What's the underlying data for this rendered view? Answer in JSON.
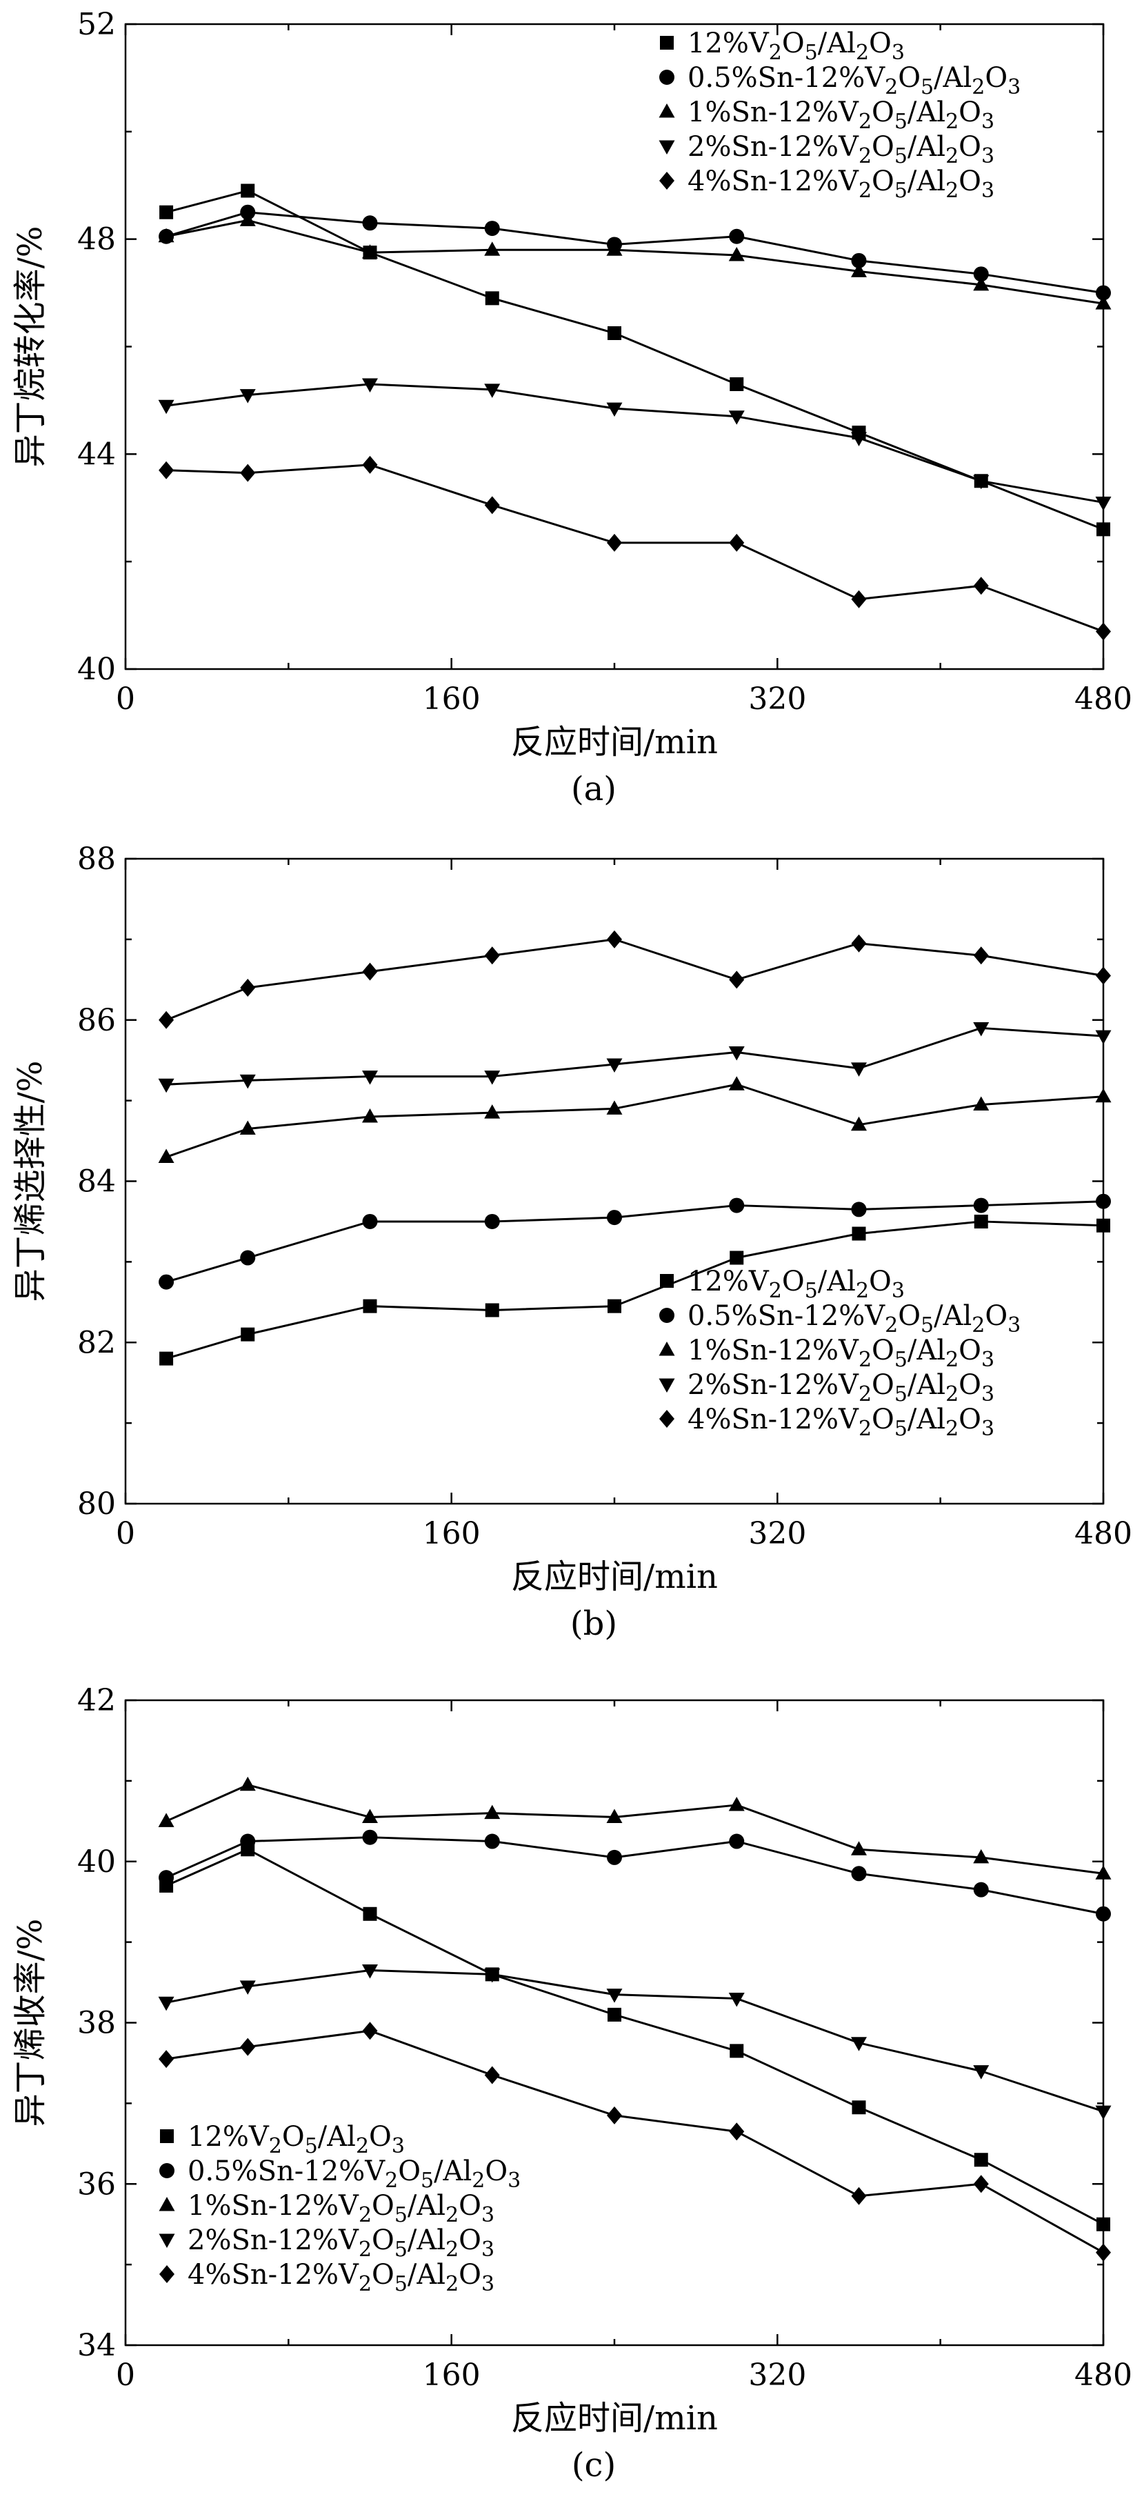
{
  "chart_data": [
    {
      "type": "line",
      "panel_label": "(a)",
      "xlabel": "反应时间/min",
      "ylabel": "异丁烷转化率/%",
      "xlim": [
        0,
        480
      ],
      "ylim": [
        40,
        52
      ],
      "xticks": [
        0,
        160,
        320,
        480
      ],
      "yticks": [
        40,
        44,
        48,
        52
      ],
      "legend_position": "top-right",
      "grid": false,
      "x": [
        20,
        60,
        120,
        180,
        240,
        300,
        360,
        420,
        480
      ],
      "series": [
        {
          "name": "12%V2O5/Al2O3",
          "marker": "square",
          "values": [
            48.5,
            48.9,
            47.75,
            46.9,
            46.25,
            45.3,
            44.4,
            43.5,
            42.6
          ]
        },
        {
          "name": "0.5%Sn-12%V2O5/Al2O3",
          "marker": "circle",
          "values": [
            48.05,
            48.5,
            48.3,
            48.2,
            47.9,
            48.05,
            47.6,
            47.35,
            47.0
          ]
        },
        {
          "name": "1%Sn-12%V2O5/Al2O3",
          "marker": "triangle-up",
          "values": [
            48.05,
            48.35,
            47.75,
            47.8,
            47.8,
            47.7,
            47.4,
            47.15,
            46.8
          ]
        },
        {
          "name": "2%Sn-12%V2O5/Al2O3",
          "marker": "triangle-down",
          "values": [
            44.9,
            45.1,
            45.3,
            45.2,
            44.85,
            44.7,
            44.3,
            43.5,
            43.1
          ]
        },
        {
          "name": "4%Sn-12%V2O5/Al2O3",
          "marker": "diamond",
          "values": [
            43.7,
            43.65,
            43.8,
            43.05,
            42.35,
            42.35,
            41.3,
            41.55,
            40.7
          ]
        }
      ]
    },
    {
      "type": "line",
      "panel_label": "(b)",
      "xlabel": "反应时间/min",
      "ylabel": "异丁烯选择性/%",
      "xlim": [
        0,
        480
      ],
      "ylim": [
        80,
        88
      ],
      "xticks": [
        0,
        160,
        320,
        480
      ],
      "yticks": [
        80,
        82,
        84,
        86,
        88
      ],
      "legend_position": "bottom-right",
      "grid": false,
      "x": [
        20,
        60,
        120,
        180,
        240,
        300,
        360,
        420,
        480
      ],
      "series": [
        {
          "name": "12%V2O5/Al2O3",
          "marker": "square",
          "values": [
            81.8,
            82.1,
            82.45,
            82.4,
            82.45,
            83.05,
            83.35,
            83.5,
            83.45
          ]
        },
        {
          "name": "0.5%Sn-12%V2O5/Al2O3",
          "marker": "circle",
          "values": [
            82.75,
            83.05,
            83.5,
            83.5,
            83.55,
            83.7,
            83.65,
            83.7,
            83.75
          ]
        },
        {
          "name": "1%Sn-12%V2O5/Al2O3",
          "marker": "triangle-up",
          "values": [
            84.3,
            84.65,
            84.8,
            84.85,
            84.9,
            85.2,
            84.7,
            84.95,
            85.05
          ]
        },
        {
          "name": "2%Sn-12%V2O5/Al2O3",
          "marker": "triangle-down",
          "values": [
            85.2,
            85.25,
            85.3,
            85.3,
            85.45,
            85.6,
            85.4,
            85.9,
            85.8
          ]
        },
        {
          "name": "4%Sn-12%V2O5/Al2O3",
          "marker": "diamond",
          "values": [
            86.0,
            86.4,
            86.6,
            86.8,
            87.0,
            86.5,
            86.95,
            86.8,
            86.55
          ]
        }
      ]
    },
    {
      "type": "line",
      "panel_label": "(c)",
      "xlabel": "反应时间/min",
      "ylabel": "异丁烯收率/%",
      "xlim": [
        0,
        480
      ],
      "ylim": [
        34,
        42
      ],
      "xticks": [
        0,
        160,
        320,
        480
      ],
      "yticks": [
        34,
        36,
        38,
        40,
        42
      ],
      "legend_position": "bottom-left",
      "grid": false,
      "x": [
        20,
        60,
        120,
        180,
        240,
        300,
        360,
        420,
        480
      ],
      "series": [
        {
          "name": "12%V2O5/Al2O3",
          "marker": "square",
          "values": [
            39.7,
            40.15,
            39.35,
            38.6,
            38.1,
            37.65,
            36.95,
            36.3,
            35.5
          ]
        },
        {
          "name": "0.5%Sn-12%V2O5/Al2O3",
          "marker": "circle",
          "values": [
            39.8,
            40.25,
            40.3,
            40.25,
            40.05,
            40.25,
            39.85,
            39.65,
            39.35
          ]
        },
        {
          "name": "1%Sn-12%V2O5/Al2O3",
          "marker": "triangle-up",
          "values": [
            40.5,
            40.95,
            40.55,
            40.6,
            40.55,
            40.7,
            40.15,
            40.05,
            39.85
          ]
        },
        {
          "name": "2%Sn-12%V2O5/Al2O3",
          "marker": "triangle-down",
          "values": [
            38.25,
            38.45,
            38.65,
            38.6,
            38.35,
            38.3,
            37.75,
            37.4,
            36.9
          ]
        },
        {
          "name": "4%Sn-12%V2O5/Al2O3",
          "marker": "diamond",
          "values": [
            37.55,
            37.7,
            37.9,
            37.35,
            36.85,
            36.65,
            35.85,
            36.0,
            35.15
          ]
        }
      ]
    }
  ]
}
